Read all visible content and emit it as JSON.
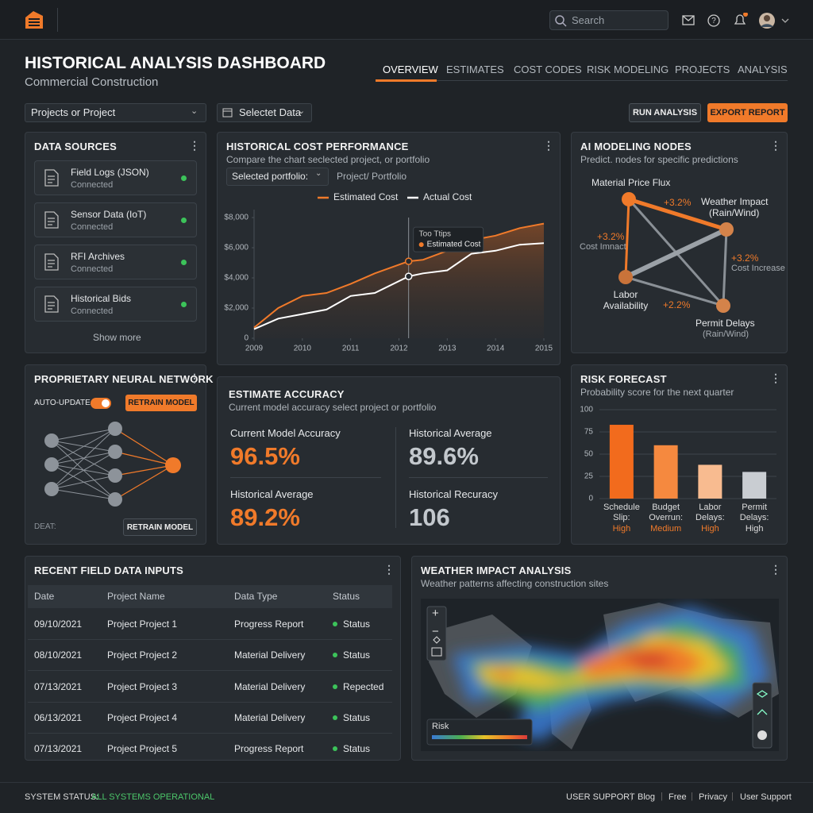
{
  "header": {
    "search": "Search"
  },
  "title": "HISTORICAL ANALYSIS DASHBOARD",
  "subtitle": "Commercial Construction",
  "tabs": [
    "OVERVIEW",
    "ESTIMATES",
    "COST CODES",
    "RISK MODELING",
    "PROJECTS",
    "ANALYSIS"
  ],
  "filters": {
    "project": "Projects or Project",
    "data": "Selectet Data"
  },
  "buttons": {
    "run": "RUN ANALYSIS",
    "export": "EXPORT REPORT"
  },
  "data_sources": {
    "title": "DATA SOURCES",
    "items": [
      {
        "name": "Field Logs (JSON)",
        "status": "Connected"
      },
      {
        "name": "Sensor Data (IoT)",
        "status": "Connected"
      },
      {
        "name": "RFI Archives",
        "status": "Connected"
      },
      {
        "name": "Historical Bids",
        "status": "Connected"
      }
    ],
    "more": "Show more"
  },
  "cost_panel": {
    "title": "HISTORICAL COST PERFORMANCE",
    "subtitle": "Compare the chart seclected project, or portfolio",
    "select": "Selected portfolio:",
    "select_note": "Project/ Portfolio",
    "tooltip_title": "Too Ttips",
    "tooltip_label": "Estimated Cost"
  },
  "ai_nodes": {
    "title": "AI MODELING NODES",
    "subtitle": "Predict. nodes for specific predictions",
    "nodes": [
      {
        "label": "Material Price Flux"
      },
      {
        "label": "Weather Impact",
        "sublabel": "(Rain/Wind)"
      },
      {
        "label": "Labor Availability"
      },
      {
        "label": "Permit Delays",
        "sublabel": "(Rain/Wind)"
      }
    ],
    "edge_labels": [
      {
        "value": "+3.2%"
      },
      {
        "value": "+3.2%",
        "note": "Cost Imnact"
      },
      {
        "value": "+3.2%",
        "note": "Cost Increase"
      },
      {
        "value": "+2.2%"
      }
    ]
  },
  "neural": {
    "title": "PROPRIETARY NEURAL NETWORK",
    "auto_update": "AUTO-UPDATE",
    "retrain": "RETRAIN MODEL",
    "footer_label": "DEAT:",
    "retrain_bottom": "RETRAIN MODEL"
  },
  "accuracy": {
    "title": "ESTIMATE ACCURACY",
    "subtitle": "Current model accuracy select project or portfolio",
    "metrics": [
      {
        "label": "Current Model Accuracy",
        "value": "96.5%"
      },
      {
        "label": "Historical Average",
        "value": "89.6%"
      },
      {
        "label": "Historical Average",
        "value": "89.2%"
      },
      {
        "label": "Historical Recuracy",
        "value": "106"
      }
    ]
  },
  "risk_panel": {
    "title": "RISK FORECAST",
    "subtitle": "Probability score for the next quarter"
  },
  "table": {
    "title": "RECENT FIELD DATA INPUTS",
    "columns": [
      "Date",
      "Project Name",
      "Data Type",
      "Status"
    ],
    "rows": [
      [
        "09/10/2021",
        "Project Project 1",
        "Progress Report",
        "Status"
      ],
      [
        "08/10/2021",
        "Project Project 2",
        "Material Delivery",
        "Status"
      ],
      [
        "07/13/2021",
        "Project Project 3",
        "Material Delivery",
        "Repected"
      ],
      [
        "06/13/2021",
        "Project Project 4",
        "Material Delivery",
        "Status"
      ],
      [
        "07/13/2021",
        "Project Project 5",
        "Progress Report",
        "Status"
      ]
    ]
  },
  "weather": {
    "title": "WEATHER IMPACT ANALYSIS",
    "subtitle": "Weather patterns affecting construction sites",
    "zoom": [
      "+",
      "−"
    ],
    "legend": "Risk"
  },
  "footer": {
    "status_label": "SYSTEM STATUS:",
    "status": "ALL SYSTEMS OPERATIONAL",
    "links": [
      "USER SUPPORT",
      "Blog",
      "Free",
      "Privacy",
      "User Support"
    ]
  },
  "chart_data": [
    {
      "type": "line",
      "x": [
        2009,
        2009.5,
        2010,
        2010.5,
        2011,
        2011.5,
        2012.2,
        2012.5,
        2013,
        2013.5,
        2014,
        2014.5,
        2015
      ],
      "series": [
        {
          "name": "Estimated Cost",
          "color": "#f07a2a",
          "values": [
            700,
            2000,
            2800,
            3000,
            3600,
            4300,
            5100,
            5200,
            5800,
            6500,
            6800,
            7300,
            7600
          ]
        },
        {
          "name": "Actual Cost",
          "color": "#ffffff",
          "values": [
            600,
            1300,
            1600,
            1900,
            2800,
            3000,
            4100,
            4300,
            4500,
            5600,
            5800,
            6200,
            6300
          ]
        }
      ],
      "xlim": [
        2009,
        2015
      ],
      "xticks": [
        2009,
        2010,
        2011,
        2012,
        2013,
        2014,
        2015
      ],
      "ylim": [
        0,
        8000
      ],
      "yticks": [
        0,
        {
          "value": 2000,
          "label": "$2,000"
        },
        {
          "value": 4000,
          "label": "$4,000"
        },
        {
          "value": 6000,
          "label": "$6,000"
        },
        {
          "value": 8000,
          "label": "$8,000"
        }
      ],
      "grid": false
    },
    {
      "type": "bar",
      "categories": [
        "Schedule Slip:",
        "Budget Overrun:",
        "Labor Delays:",
        "Permit Delays:"
      ],
      "levels": [
        "High",
        "Medium",
        "High",
        "High"
      ],
      "values": [
        83,
        60,
        38,
        30
      ],
      "colors": [
        "#f26b1d",
        "#f5893f",
        "#f8bb90",
        "#c9cdd2"
      ],
      "ylim": [
        0,
        100
      ],
      "yticks": [
        0,
        25,
        50,
        75,
        100
      ],
      "grid": true
    }
  ]
}
